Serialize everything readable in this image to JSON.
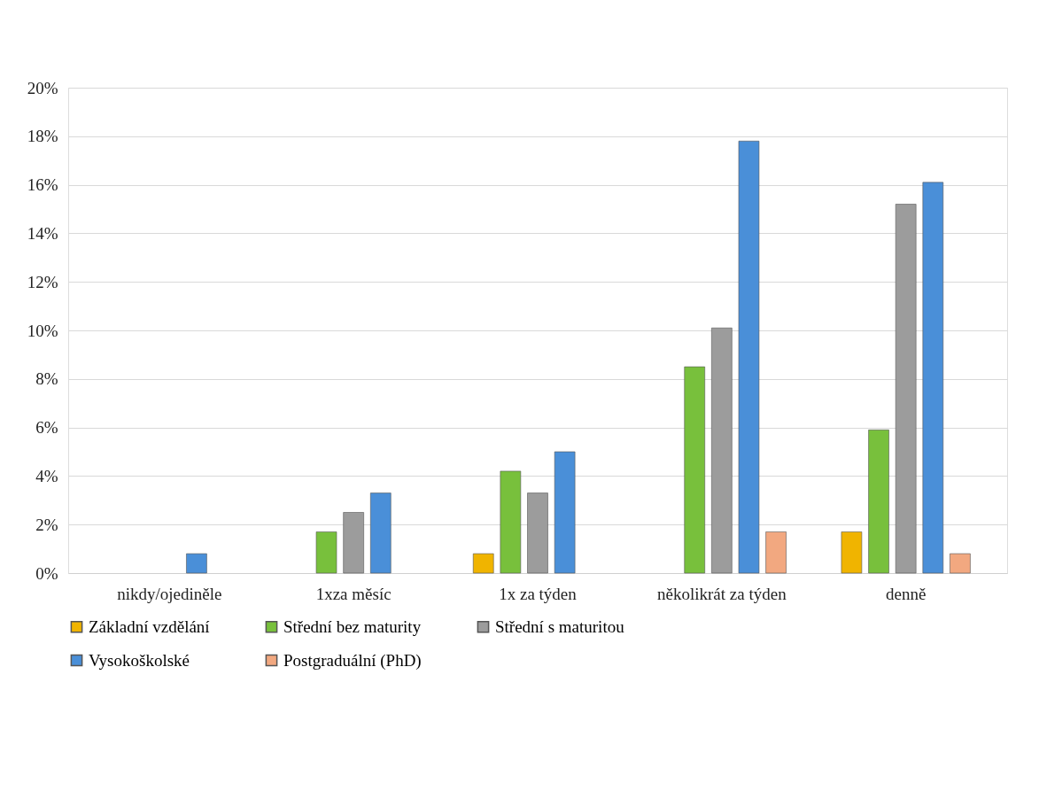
{
  "chart_data": {
    "type": "bar",
    "categories": [
      "nikdy/ojediněle",
      "1xza měsíc",
      "1x za týden",
      "několikrát za týden",
      "denně"
    ],
    "series": [
      {
        "name": "Základní vzdělání",
        "color": "#f0b400",
        "values": [
          null,
          null,
          0.8,
          null,
          1.7
        ]
      },
      {
        "name": "Střední bez maturity",
        "color": "#78c03c",
        "values": [
          null,
          1.7,
          4.2,
          8.5,
          5.9
        ]
      },
      {
        "name": "Střední s maturitou",
        "color": "#9c9c9c",
        "values": [
          null,
          2.5,
          3.3,
          10.1,
          15.2
        ]
      },
      {
        "name": "Vysokoškolské",
        "color": "#4a8fd8",
        "values": [
          0.8,
          3.3,
          5.0,
          17.8,
          16.1
        ]
      },
      {
        "name": "Postgraduální (PhD)",
        "color": "#f2a880",
        "values": [
          null,
          null,
          null,
          1.7,
          0.8
        ]
      }
    ],
    "ylim": [
      0,
      20
    ],
    "yticks": [
      {
        "value": 0,
        "label": "0%"
      },
      {
        "value": 2,
        "label": "2%"
      },
      {
        "value": 4,
        "label": "4%"
      },
      {
        "value": 6,
        "label": "6%"
      },
      {
        "value": 8,
        "label": "8%"
      },
      {
        "value": 10,
        "label": "10%"
      },
      {
        "value": 12,
        "label": "12%"
      },
      {
        "value": 14,
        "label": "14%"
      },
      {
        "value": 16,
        "label": "16%"
      },
      {
        "value": 18,
        "label": "18%"
      },
      {
        "value": 20,
        "label": "20%"
      }
    ],
    "grid": "y",
    "legend": "bottom"
  }
}
